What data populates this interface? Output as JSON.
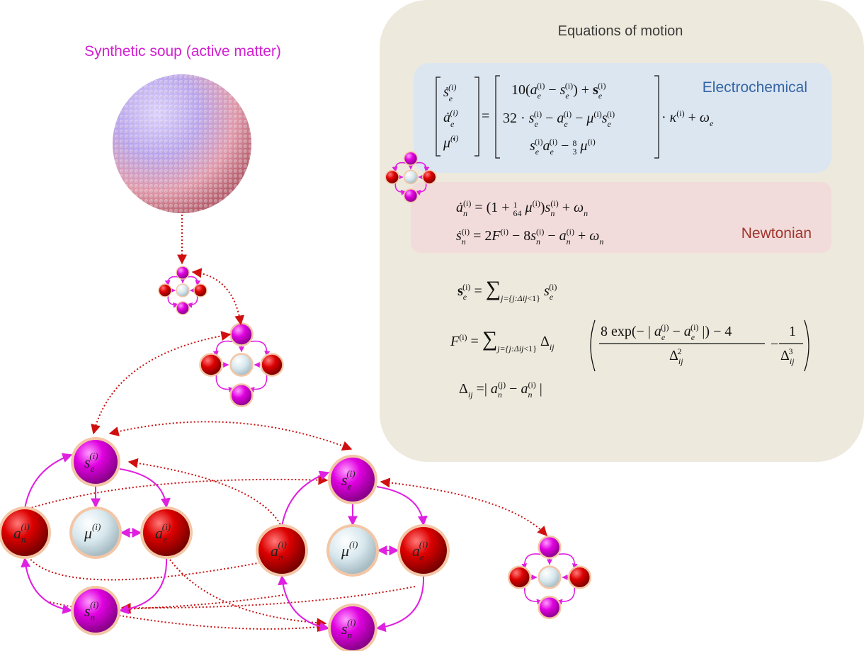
{
  "title_left": "Synthetic soup (active matter)",
  "panel": {
    "title": "Equations of motion",
    "electro_label": "Electrochemical",
    "newton_label": "Newtonian",
    "colors": {
      "panel": "#EDE9DC",
      "electro": "#DCE6F1",
      "newton": "#F2DCDB",
      "title": "#3b3b3b",
      "electro_text": "#3465A4",
      "newton_text": "#A0352E"
    }
  },
  "node_labels": {
    "se": "s",
    "se_sub": "e",
    "ae": "a",
    "ae_sub": "e",
    "an": "a",
    "an_sub": "n",
    "sn": "s",
    "sn_sub": "n",
    "mu": "μ",
    "sup": "(i)"
  },
  "colors": {
    "magenta_node": "#E000E0",
    "red_node": "#D00000",
    "grey_node": "#D5E6EC",
    "ring": "#F3C6A6",
    "arrow_magenta": "#E020E0",
    "arrow_red": "#C81414"
  }
}
